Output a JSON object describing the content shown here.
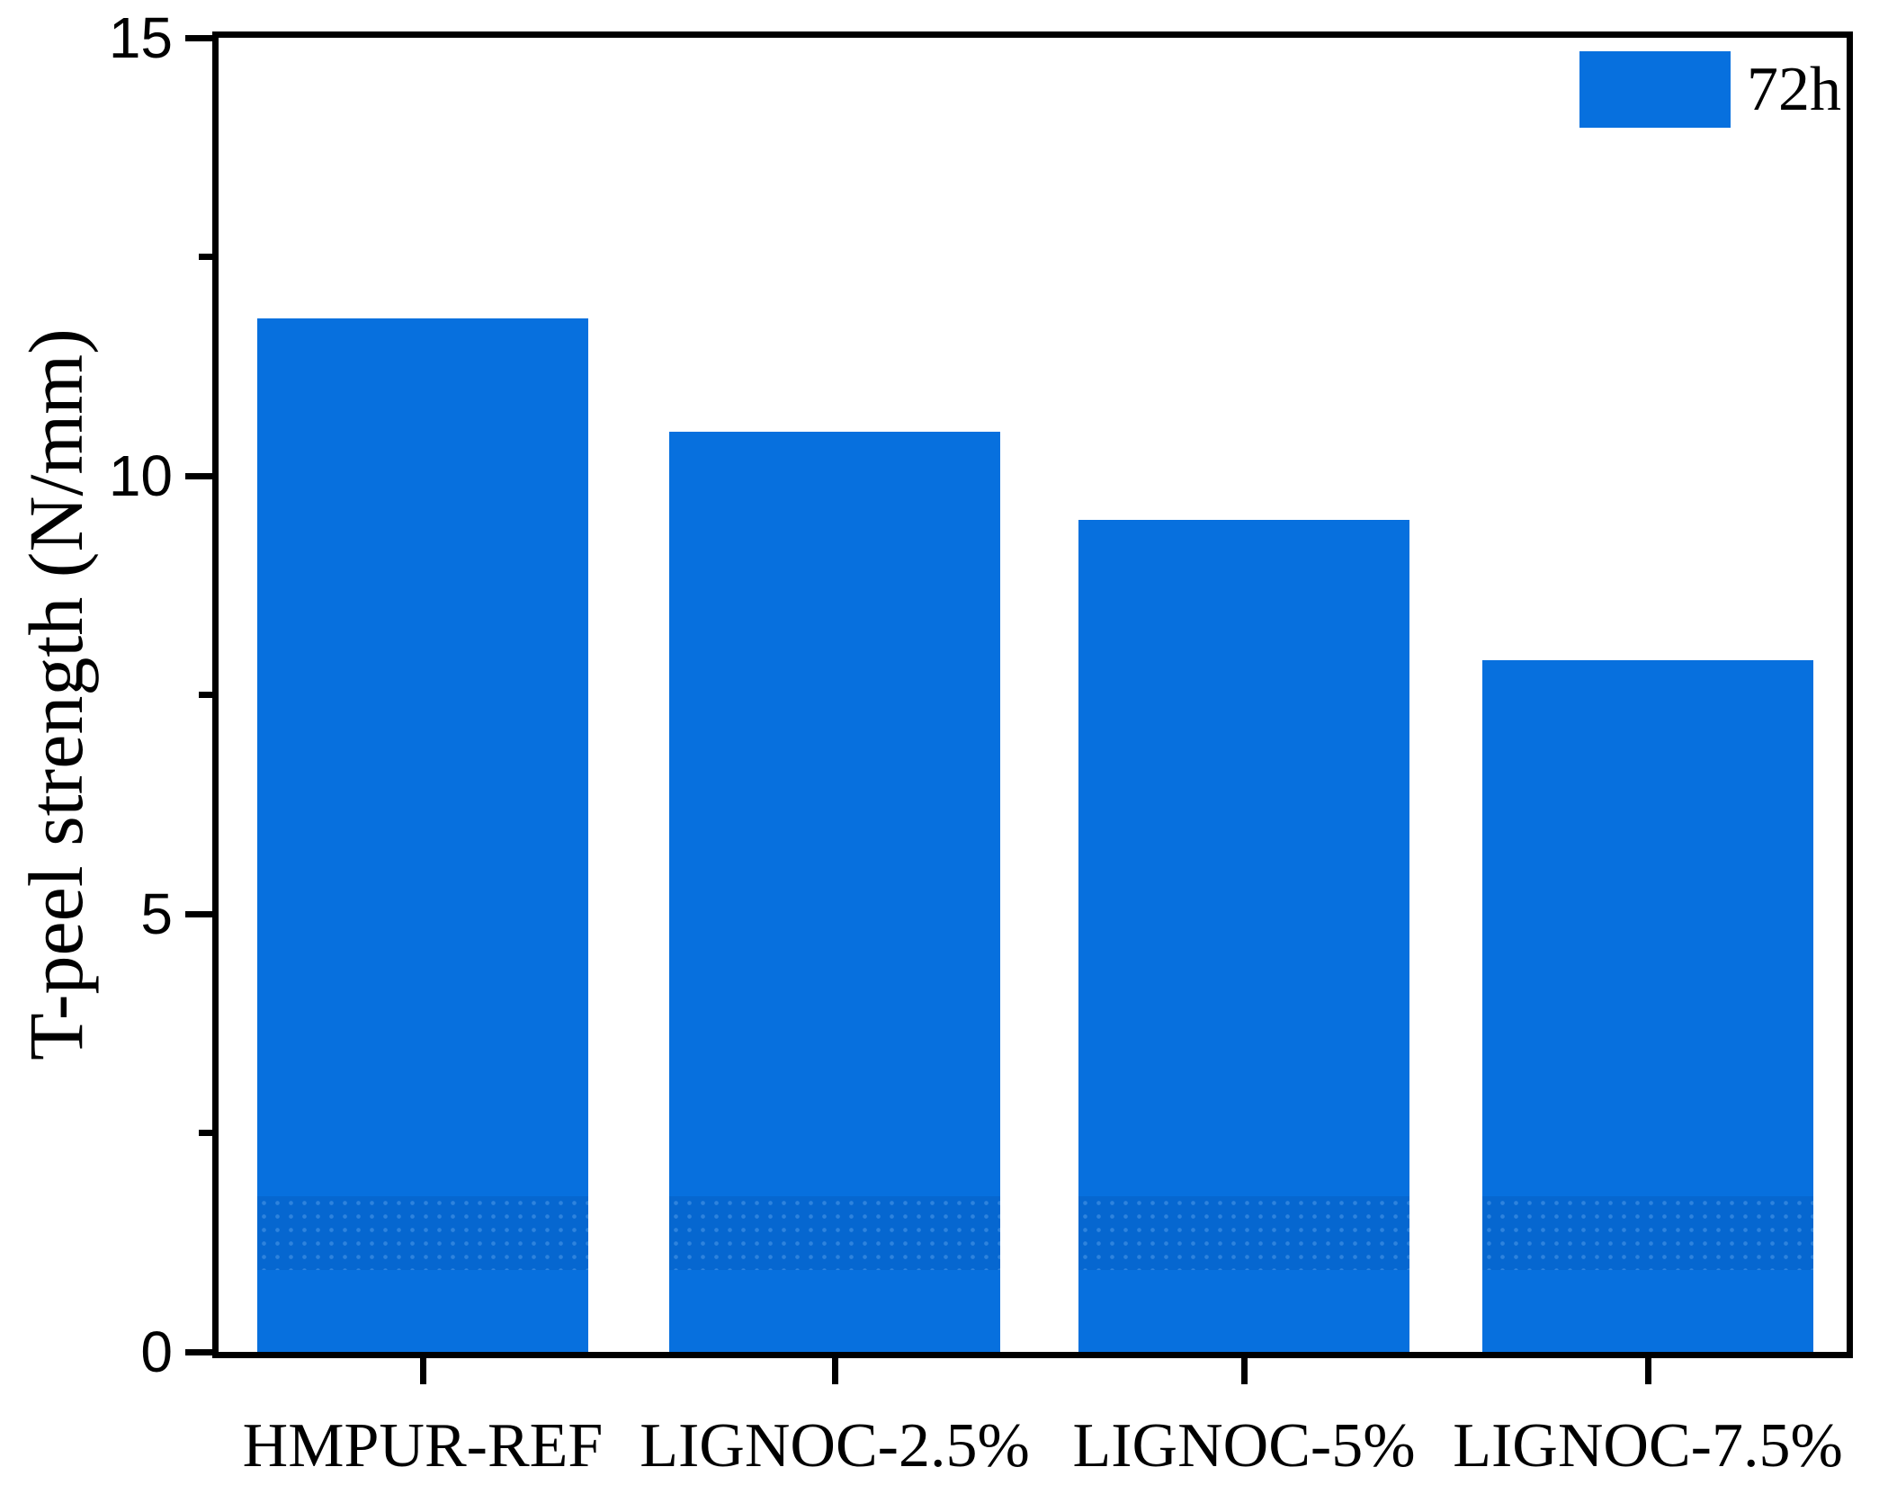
{
  "chart_data": {
    "type": "bar",
    "title": "",
    "categories": [
      "HMPUR-REF",
      "LIGNOC-2.5%",
      "LIGNOC-5%",
      "LIGNOC-7.5%"
    ],
    "series": [
      {
        "name": "72h",
        "values": [
          11.8,
          10.5,
          9.5,
          7.9
        ]
      }
    ],
    "xlabel": "",
    "ylabel": "T-peel strength (N/mm)",
    "ylim": [
      0,
      15
    ],
    "yticks_major": [
      0,
      5,
      10,
      15
    ],
    "yticks_minor": [
      2.5,
      7.5,
      12.5
    ],
    "grid": false,
    "legend_position": "top-right",
    "bar_color": "#0770de",
    "axis_color": "#000000",
    "background_color": "#ffffff"
  }
}
